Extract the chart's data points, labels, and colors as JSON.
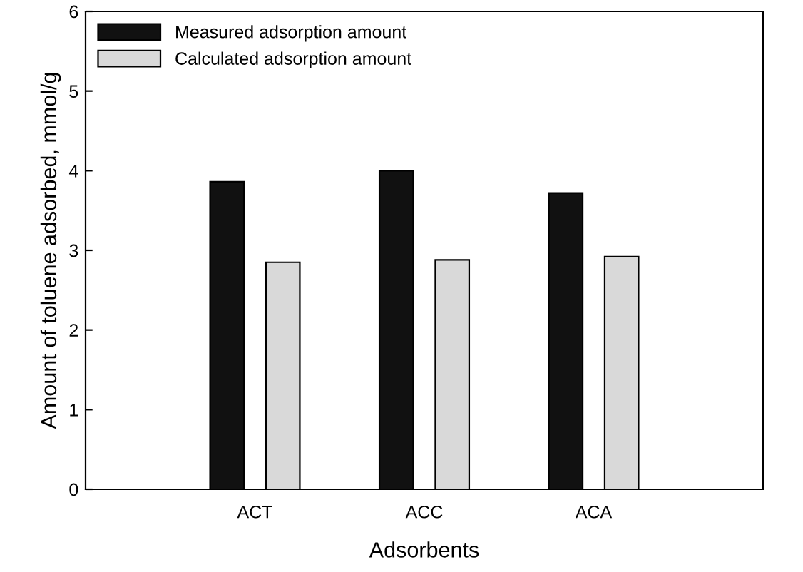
{
  "chart_data": {
    "type": "bar",
    "xlabel": "Adsorbents",
    "ylabel": "Amount of toluene adsorbed, mmol/g",
    "categories": [
      "ACT",
      "ACC",
      "ACA"
    ],
    "series": [
      {
        "name": "Measured adsorption amount",
        "color": "#111111",
        "values": [
          3.86,
          4.0,
          3.72
        ]
      },
      {
        "name": "Calculated adsorption amount",
        "color": "#d9d9d9",
        "values": [
          2.85,
          2.88,
          2.92
        ]
      }
    ],
    "ylim": [
      0,
      6
    ],
    "yticks": [
      0,
      1,
      2,
      3,
      4,
      5,
      6
    ],
    "grid": false,
    "legend": "top left"
  }
}
